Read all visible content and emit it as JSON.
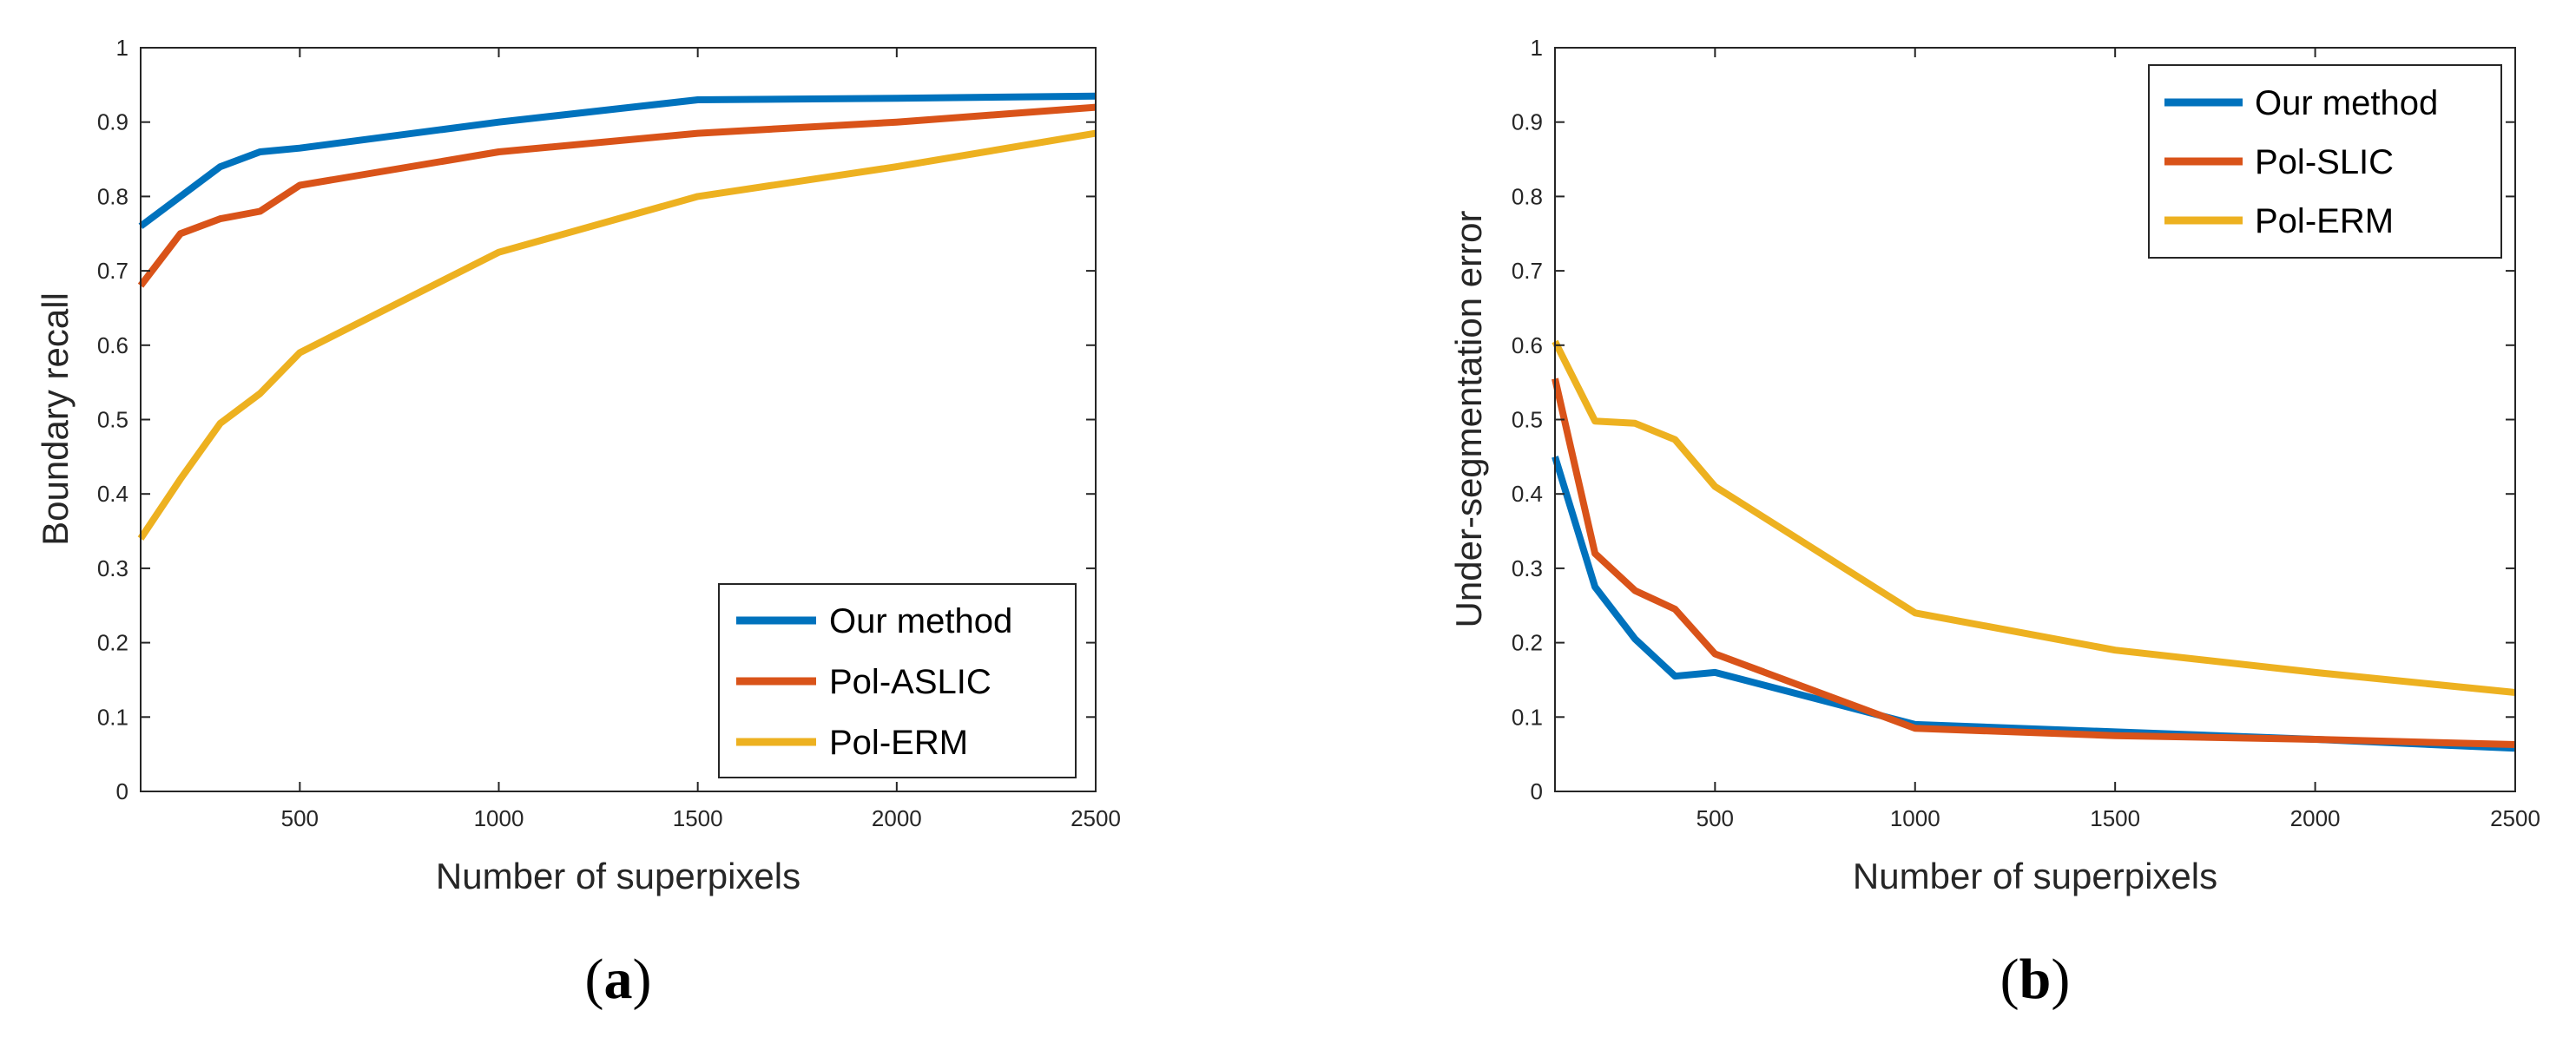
{
  "chart_data": [
    {
      "type": "line",
      "panel_label": "a",
      "xlabel": "Number of superpixels",
      "ylabel": "Boundary recall",
      "xlim": [
        100,
        2500
      ],
      "ylim": [
        0,
        1
      ],
      "xticks": [
        500,
        1000,
        1500,
        2000,
        2500
      ],
      "yticks": [
        0,
        0.1,
        0.2,
        0.3,
        0.4,
        0.5,
        0.6,
        0.7,
        0.8,
        0.9,
        1
      ],
      "grid": false,
      "legend_position": "bottom-right",
      "series": [
        {
          "name": "Our method",
          "color": "#0072BD",
          "x": [
            100,
            200,
            300,
            400,
            500,
            1000,
            1500,
            2000,
            2500
          ],
          "y": [
            0.76,
            0.8,
            0.84,
            0.86,
            0.865,
            0.9,
            0.93,
            0.932,
            0.935
          ]
        },
        {
          "name": "Pol-ASLIC",
          "color": "#D95319",
          "x": [
            100,
            200,
            300,
            400,
            500,
            1000,
            1500,
            2000,
            2500
          ],
          "y": [
            0.68,
            0.75,
            0.77,
            0.78,
            0.815,
            0.86,
            0.885,
            0.9,
            0.92
          ]
        },
        {
          "name": "Pol-ERM",
          "color": "#EDB120",
          "x": [
            100,
            200,
            300,
            400,
            500,
            1000,
            1500,
            2000,
            2500
          ],
          "y": [
            0.34,
            0.42,
            0.495,
            0.535,
            0.59,
            0.725,
            0.8,
            0.84,
            0.885
          ]
        }
      ]
    },
    {
      "type": "line",
      "panel_label": "b",
      "xlabel": "Number of superpixels",
      "ylabel": "Under-segmentation error",
      "xlim": [
        100,
        2500
      ],
      "ylim": [
        0,
        1
      ],
      "xticks": [
        500,
        1000,
        1500,
        2000,
        2500
      ],
      "yticks": [
        0,
        0.1,
        0.2,
        0.3,
        0.4,
        0.5,
        0.6,
        0.7,
        0.8,
        0.9,
        1
      ],
      "grid": false,
      "legend_position": "top-right",
      "series": [
        {
          "name": "Our method",
          "color": "#0072BD",
          "x": [
            100,
            200,
            300,
            400,
            500,
            1000,
            1500,
            2000,
            2500
          ],
          "y": [
            0.45,
            0.275,
            0.205,
            0.155,
            0.16,
            0.09,
            0.08,
            0.07,
            0.058
          ]
        },
        {
          "name": "Pol-SLIC",
          "color": "#D95319",
          "x": [
            100,
            200,
            300,
            400,
            500,
            1000,
            1500,
            2000,
            2500
          ],
          "y": [
            0.555,
            0.32,
            0.27,
            0.245,
            0.185,
            0.085,
            0.075,
            0.07,
            0.063
          ]
        },
        {
          "name": "Pol-ERM",
          "color": "#EDB120",
          "x": [
            100,
            200,
            300,
            400,
            500,
            1000,
            1500,
            2000,
            2500
          ],
          "y": [
            0.605,
            0.498,
            0.495,
            0.473,
            0.41,
            0.24,
            0.19,
            0.16,
            0.133
          ]
        }
      ]
    }
  ]
}
